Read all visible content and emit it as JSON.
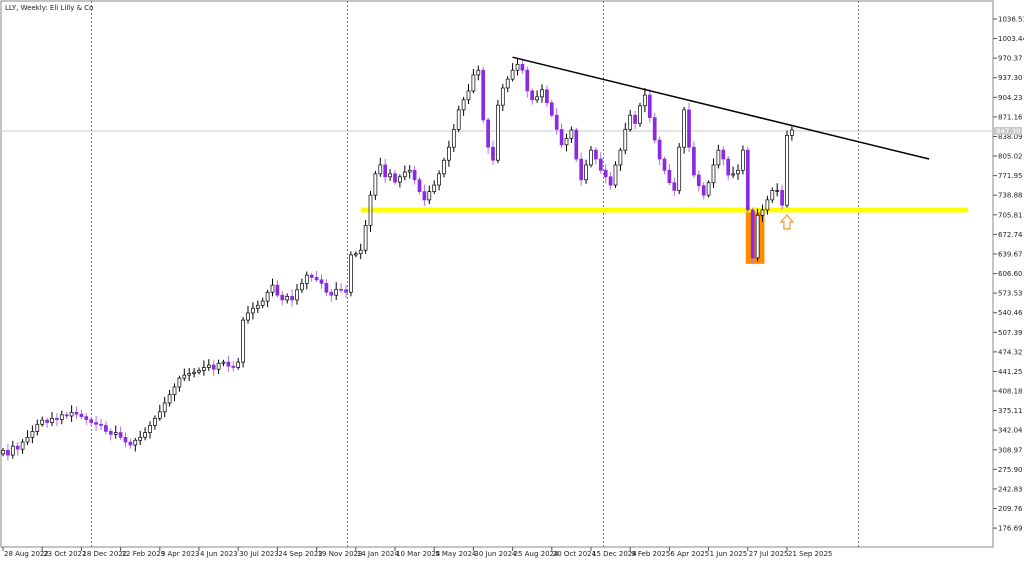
{
  "header": {
    "title": "LLY, Weekly:  Eli Lilly & Co"
  },
  "chart_data": {
    "type": "candlestick",
    "symbol": "LLY",
    "timeframe": "Weekly",
    "first_week": "28 Aug 2022",
    "closes": [
      308,
      300,
      315,
      310,
      322,
      330,
      340,
      352,
      359,
      355,
      362,
      360,
      368,
      366,
      372,
      369,
      365,
      360,
      355,
      352,
      350,
      340,
      335,
      338,
      330,
      322,
      317,
      325,
      330,
      338,
      350,
      362,
      373,
      388,
      402,
      415,
      430,
      435,
      438,
      440,
      443,
      448,
      452,
      445,
      455,
      457,
      450,
      448,
      457,
      528,
      540,
      548,
      553,
      560,
      575,
      587,
      570,
      562,
      568,
      562,
      579,
      590,
      604,
      600,
      596,
      590,
      575,
      570,
      580,
      579,
      575,
      638,
      640,
      646,
      688,
      739,
      775,
      790,
      770,
      775,
      761,
      770,
      778,
      781,
      765,
      745,
      731,
      745,
      756,
      775,
      798,
      820,
      850,
      883,
      900,
      915,
      942,
      950,
      866,
      820,
      798,
      891,
      920,
      935,
      950,
      960,
      950,
      915,
      900,
      905,
      917,
      895,
      874,
      850,
      824,
      835,
      849,
      800,
      765,
      790,
      815,
      800,
      781,
      770,
      756,
      790,
      815,
      850,
      874,
      860,
      890,
      908,
      870,
      832,
      800,
      781,
      760,
      747,
      820,
      883,
      820,
      773,
      755,
      739,
      760,
      790,
      815,
      800,
      773,
      775,
      781,
      815,
      714,
      633,
      705,
      714,
      731,
      747,
      747,
      722,
      840,
      849
    ],
    "x_tick_labels": [
      "28 Aug 2022",
      "23 Oct 2022",
      "18 Dec 2022",
      "12 Feb 2023",
      "9 Apr 2023",
      "4 Jun 2023",
      "30 Jul 2023",
      "24 Sep 2023",
      "19 Nov 2023",
      "14 Jan 2024",
      "10 Mar 2024",
      "5 May 2024",
      "30 Jun 2024",
      "25 Aug 2024",
      "20 Oct 2024",
      "15 Dec 2024",
      "9 Feb 2025",
      "6 Apr 2025",
      "1 Jun 2025",
      "27 Jul 2025",
      "21 Sep 2025"
    ],
    "y_tick_labels": [
      "1036.51",
      "1003.44",
      "970.37",
      "937.30",
      "904.23",
      "871.16",
      "838.09",
      "805.02",
      "771.95",
      "738.88",
      "705.81",
      "672.74",
      "639.67",
      "606.60",
      "573.53",
      "540.46",
      "507.39",
      "474.32",
      "441.25",
      "408.18",
      "375.11",
      "342.04",
      "308.97",
      "275.90",
      "242.83",
      "209.76",
      "176.69"
    ],
    "ylim": [
      176.69,
      1036.51
    ],
    "current_price": 847.3,
    "current_price_label": "847.30",
    "year_separators": [
      "1 Jan 2023",
      "1 Jan 2024",
      "1 Jan 2025",
      "1 Jan 2026"
    ],
    "annotations": {
      "support_level": {
        "price": 714,
        "from": "21 Jan 2024",
        "color": "#ffff00"
      },
      "trendline": {
        "from": {
          "date": "25 Aug 2024",
          "price": 972
        },
        "to": {
          "date": "12 Apr 2026",
          "price": 800
        },
        "color": "#000000"
      },
      "highlight_box": {
        "from": "27 Jul 2025",
        "to": "17 Aug 2025",
        "price_top": 714,
        "price_bottom": 623,
        "color": "#ff8c00"
      },
      "arrow": {
        "date": "28 Sep 2025",
        "direction": "up",
        "color": "#f0a030"
      }
    },
    "colors": {
      "bull_body": "#ffffff",
      "bull_outline": "#000000",
      "bear_body": "#8a2be2",
      "wick_bear": "#b06cf0"
    }
  }
}
